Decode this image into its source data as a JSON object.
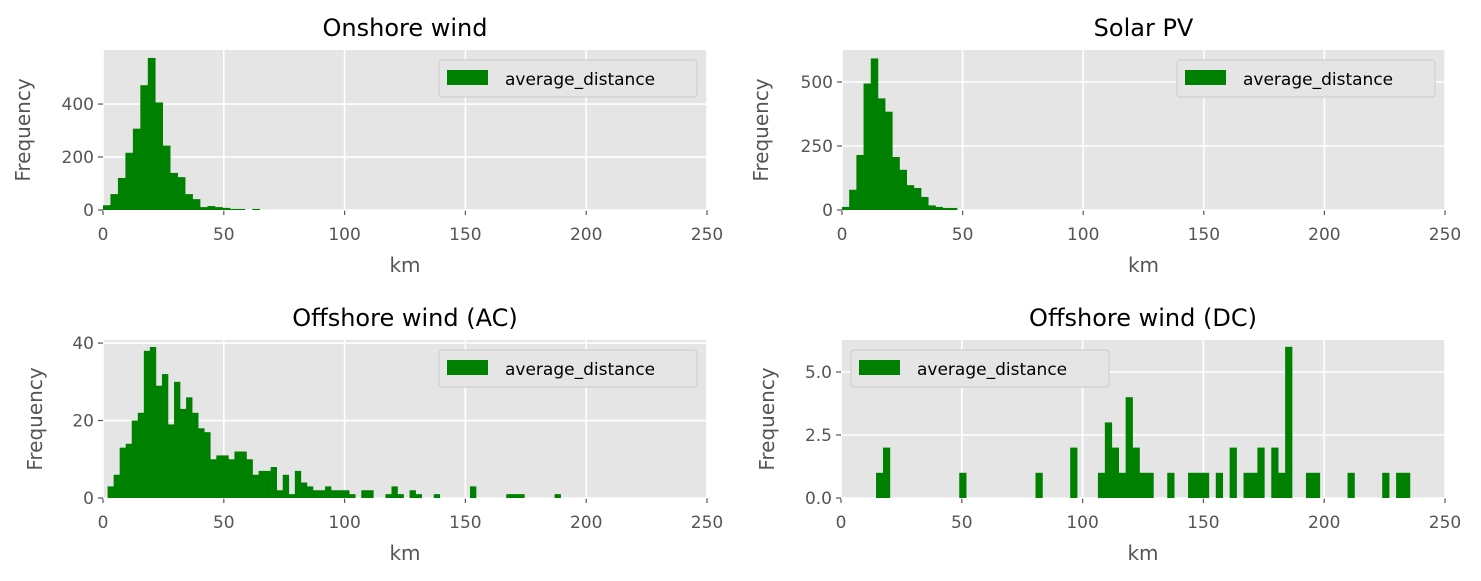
{
  "chart_data": [
    {
      "type": "bar",
      "title": "Onshore wind",
      "xlabel": "km",
      "ylabel": "Frequency",
      "legend": [
        "average_distance"
      ],
      "legend_position": "top-right",
      "xlim": [
        0,
        250
      ],
      "ylim": [
        0,
        604
      ],
      "xticks": [
        0,
        50,
        100,
        150,
        200,
        250
      ],
      "yticks": [
        0,
        200,
        400
      ],
      "ytick_labels": [
        "0",
        "200",
        "400"
      ],
      "grid": true,
      "bin_start": 0,
      "bin_width": 3.09,
      "values": [
        18,
        60,
        121,
        216,
        307,
        471,
        574,
        406,
        243,
        140,
        124,
        60,
        41,
        11,
        15,
        11,
        8,
        4,
        4,
        0,
        4
      ]
    },
    {
      "type": "bar",
      "title": "Solar PV",
      "xlabel": "km",
      "ylabel": "Frequency",
      "legend": [
        "average_distance"
      ],
      "legend_position": "top-right",
      "xlim": [
        0,
        250
      ],
      "ylim": [
        0,
        625
      ],
      "xticks": [
        0,
        50,
        100,
        150,
        200,
        250
      ],
      "yticks": [
        0,
        250,
        500
      ],
      "ytick_labels": [
        "0",
        "250",
        "500"
      ],
      "grid": true,
      "bin_start": 0,
      "bin_width": 2.98,
      "values": [
        12,
        79,
        215,
        494,
        592,
        436,
        384,
        207,
        157,
        97,
        86,
        51,
        18,
        12,
        8,
        8
      ]
    },
    {
      "type": "bar",
      "title": "Offshore wind (AC)",
      "xlabel": "km",
      "ylabel": "Frequency",
      "legend": [
        "average_distance"
      ],
      "legend_position": "top-right",
      "xlim": [
        0,
        250
      ],
      "ylim": [
        0,
        40.8
      ],
      "xticks": [
        0,
        50,
        100,
        150,
        200,
        250
      ],
      "yticks": [
        0,
        20,
        40
      ],
      "ytick_labels": [
        "0",
        "20",
        "40"
      ],
      "grid": true,
      "bin_start": 1.9,
      "bin_width": 2.5,
      "values": [
        3,
        6,
        13,
        14,
        20,
        22,
        38,
        39,
        29,
        32,
        19,
        30,
        23,
        26,
        22,
        18,
        17,
        10,
        11,
        11,
        10,
        12,
        12,
        10,
        6,
        7,
        7,
        8,
        2,
        6,
        1,
        7,
        4,
        3,
        2,
        2,
        3,
        2,
        2,
        2,
        1,
        0,
        2,
        2,
        0,
        0,
        1,
        3,
        1,
        0,
        2,
        1,
        0,
        0,
        1,
        0,
        0,
        0,
        0,
        0,
        3,
        0,
        0,
        0,
        0,
        0,
        1,
        1,
        1,
        0,
        0,
        0,
        0,
        0,
        1
      ]
    },
    {
      "type": "bar",
      "title": "Offshore wind (DC)",
      "xlabel": "km",
      "ylabel": "Frequency",
      "legend": [
        "average_distance"
      ],
      "legend_position": "top-left",
      "xlim": [
        0,
        250
      ],
      "ylim": [
        0,
        6.27
      ],
      "xticks": [
        0,
        50,
        100,
        150,
        200,
        250
      ],
      "yticks": [
        0,
        2.5,
        5.0
      ],
      "ytick_labels": [
        "0.0",
        "2.5",
        "5.0"
      ],
      "grid": true,
      "bin_start": 14.5,
      "bin_width": 2.87,
      "values": [
        1,
        2,
        0,
        0,
        0,
        0,
        0,
        0,
        0,
        0,
        0,
        0,
        1,
        0,
        0,
        0,
        0,
        0,
        0,
        0,
        0,
        0,
        0,
        1,
        0,
        0,
        0,
        0,
        2,
        0,
        0,
        0,
        1,
        3,
        2,
        1,
        4,
        2,
        1,
        1,
        0,
        0,
        1,
        0,
        0,
        1,
        1,
        1,
        0,
        1,
        0,
        2,
        0,
        1,
        1,
        2,
        0,
        2,
        1,
        6,
        0,
        0,
        1,
        1,
        0,
        0,
        0,
        0,
        1,
        0,
        0,
        0,
        0,
        1,
        0,
        1,
        1
      ]
    }
  ],
  "colors": {
    "bar": "#008000",
    "panel_bg": "#E5E5E5",
    "grid": "#FFFFFF",
    "tick_text": "#555555"
  }
}
